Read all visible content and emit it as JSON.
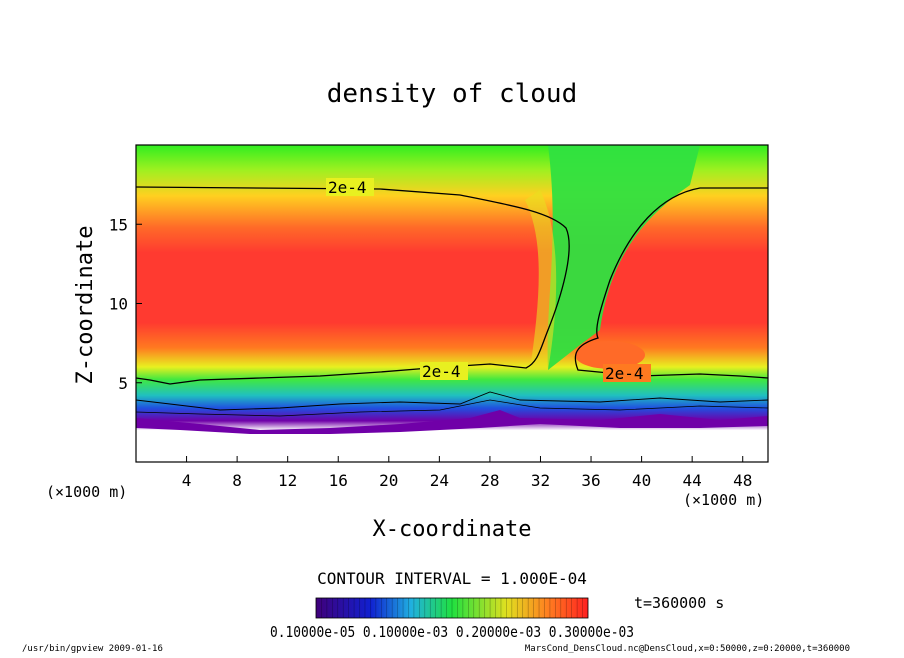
{
  "chart_data": {
    "type": "heatmap",
    "title": "density of cloud",
    "xlabel": "X-coordinate",
    "ylabel": "Z-coordinate",
    "x_units": "(×1000 m)",
    "y_units": "(×1000 m)",
    "xlim": [
      0,
      50
    ],
    "ylim": [
      0,
      20
    ],
    "x_ticks": [
      "4",
      "8",
      "12",
      "16",
      "20",
      "24",
      "28",
      "32",
      "36",
      "40",
      "44",
      "48"
    ],
    "y_ticks": [
      "5",
      "10",
      "15"
    ],
    "grid": false,
    "contour_interval_label": "CONTOUR INTERVAL = 1.000E-04",
    "contour_labels": [
      "2e-4",
      "2e-4",
      "2e-4"
    ],
    "time_label": "t=360000 s",
    "colorbar_text": "0.10000e-05 0.10000e-03 0.20000e-03 0.30000e-03",
    "colors": {
      "background": "#ffffff",
      "low": "#7000a8",
      "mid": "#20ee20",
      "high": "#ff3030"
    }
  },
  "footer": {
    "left": "/usr/bin/gpview   2009-01-16",
    "right": "MarsCond_DensCloud.nc@DensCloud,x=0:50000,z=0:20000,t=360000"
  }
}
